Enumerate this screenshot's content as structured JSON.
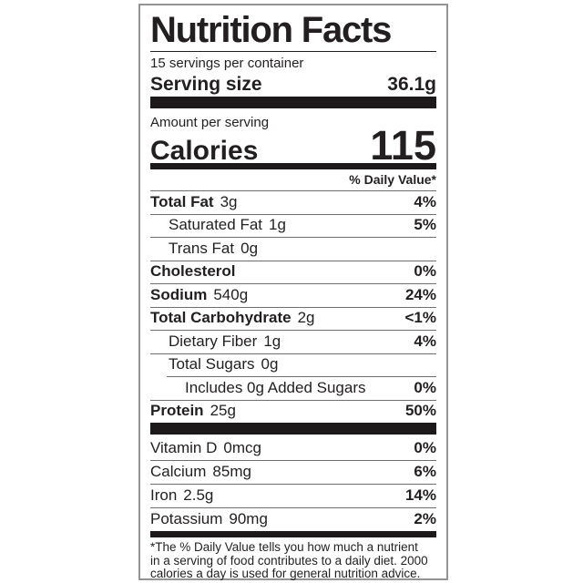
{
  "colors": {
    "text": "#231f20",
    "bar": "#1d191a",
    "hairline": "#6f6f6f",
    "border": "#949494"
  },
  "label": {
    "title": "Nutrition Facts",
    "servings_per_container": "15 servings per container",
    "serving_size": {
      "label": "Serving size",
      "value": "36.1g"
    },
    "calories": {
      "header": "Amount per serving",
      "label": "Calories",
      "value": "115"
    },
    "daily_value_header": "% Daily Value*",
    "nutrients": [
      {
        "label": "Total Fat",
        "amount": "3g",
        "dv": "4%"
      },
      {
        "label": "Saturated Fat",
        "amount": "1g",
        "dv": "5%"
      },
      {
        "label": "Trans Fat",
        "amount": "0g",
        "dv": ""
      },
      {
        "label": "Cholesterol",
        "amount": "",
        "dv": "0%"
      },
      {
        "label": "Sodium",
        "amount": "540g",
        "dv": "24%"
      },
      {
        "label": "Total Carbohydrate",
        "amount": "2g",
        "dv": "<1%"
      },
      {
        "label": "Dietary Fiber",
        "amount": "1g",
        "dv": "4%"
      },
      {
        "label": "Total Sugars",
        "amount": "0g",
        "dv": ""
      },
      {
        "label": "Includes 0g Added Sugars",
        "amount": "",
        "dv": "0%"
      },
      {
        "label": "Protein",
        "amount": "25g",
        "dv": "50%"
      }
    ],
    "micronutrients": [
      {
        "label": "Vitamin D",
        "amount": "0mcg",
        "dv": "0%"
      },
      {
        "label": "Calcium",
        "amount": "85mg",
        "dv": "6%"
      },
      {
        "label": "Iron",
        "amount": "2.5g",
        "dv": "14%"
      },
      {
        "label": "Potassium",
        "amount": "90mg",
        "dv": "2%"
      }
    ],
    "footnote_lines": [
      "*The % Daily Value tells you how much a nutrient",
      "in a serving of food contributes to a daily diet. 2000",
      "calories a day is used for general nutrition advice."
    ]
  }
}
